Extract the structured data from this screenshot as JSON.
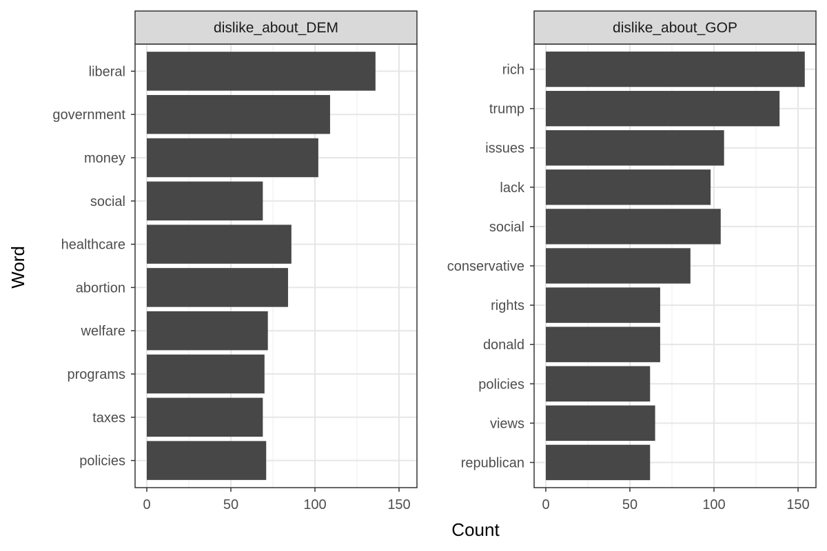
{
  "chart_data": {
    "type": "bar",
    "orientation": "horizontal",
    "xlabel": "Count",
    "ylabel": "Word",
    "xlim": [
      0,
      160
    ],
    "x_ticks": [
      0,
      50,
      100,
      150
    ],
    "grid": true,
    "bar_color": "#474747",
    "facets": [
      {
        "title": "dislike_about_DEM",
        "categories": [
          "liberal",
          "government",
          "money",
          "social",
          "healthcare",
          "abortion",
          "welfare",
          "programs",
          "taxes",
          "policies"
        ],
        "values": [
          136,
          109,
          102,
          69,
          86,
          84,
          72,
          70,
          69,
          71
        ]
      },
      {
        "title": "dislike_about_GOP",
        "categories": [
          "rich",
          "trump",
          "issues",
          "lack",
          "social",
          "conservative",
          "rights",
          "donald",
          "policies",
          "views",
          "republican"
        ],
        "values": [
          154,
          139,
          106,
          98,
          104,
          86,
          68,
          68,
          62,
          65,
          62
        ]
      }
    ]
  }
}
